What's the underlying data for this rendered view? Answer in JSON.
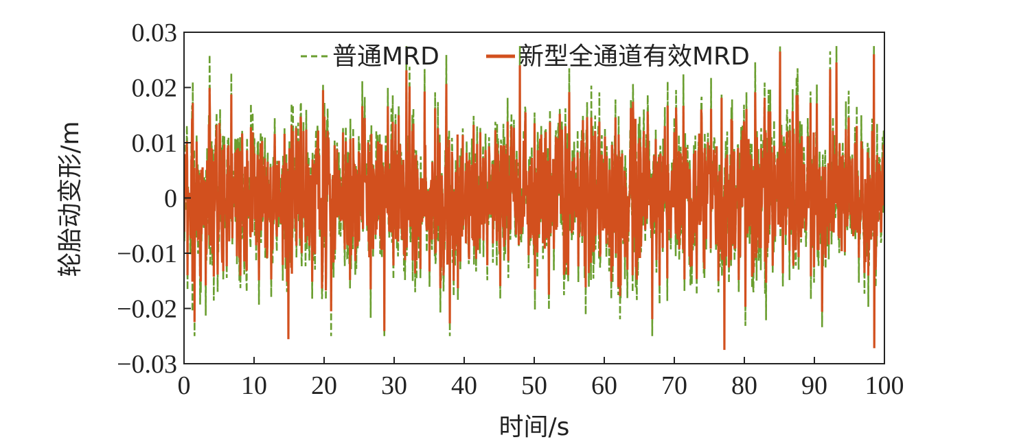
{
  "chart_data": {
    "type": "line",
    "xlabel": "时间/s",
    "ylabel": "轮胎动变形/m",
    "xlim": [
      0,
      100
    ],
    "ylim": [
      -0.03,
      0.03
    ],
    "x_ticks": [
      0,
      10,
      20,
      30,
      40,
      50,
      60,
      70,
      80,
      90,
      100
    ],
    "x_tick_labels": [
      "0",
      "10",
      "20",
      "30",
      "40",
      "50",
      "60",
      "70",
      "80",
      "90",
      "100"
    ],
    "y_ticks": [
      0.03,
      0.02,
      0.01,
      0,
      -0.01,
      -0.02,
      -0.03
    ],
    "y_tick_labels": [
      "0.03",
      "0.02",
      "0.01",
      "0",
      "−0.01",
      "−0.02",
      "−0.03"
    ],
    "legend_position": "top",
    "grid": false,
    "sample_rate_hz": 20,
    "series": [
      {
        "name": "普通MRD",
        "color": "#6a9e2f",
        "style": "dashed",
        "approx_rms": 0.0072,
        "max": 0.0275,
        "min": -0.025
      },
      {
        "name": "新型全通道有效MRD",
        "color": "#d2501e",
        "style": "solid",
        "approx_rms": 0.0065,
        "max": 0.0265,
        "min": -0.0275
      }
    ]
  }
}
